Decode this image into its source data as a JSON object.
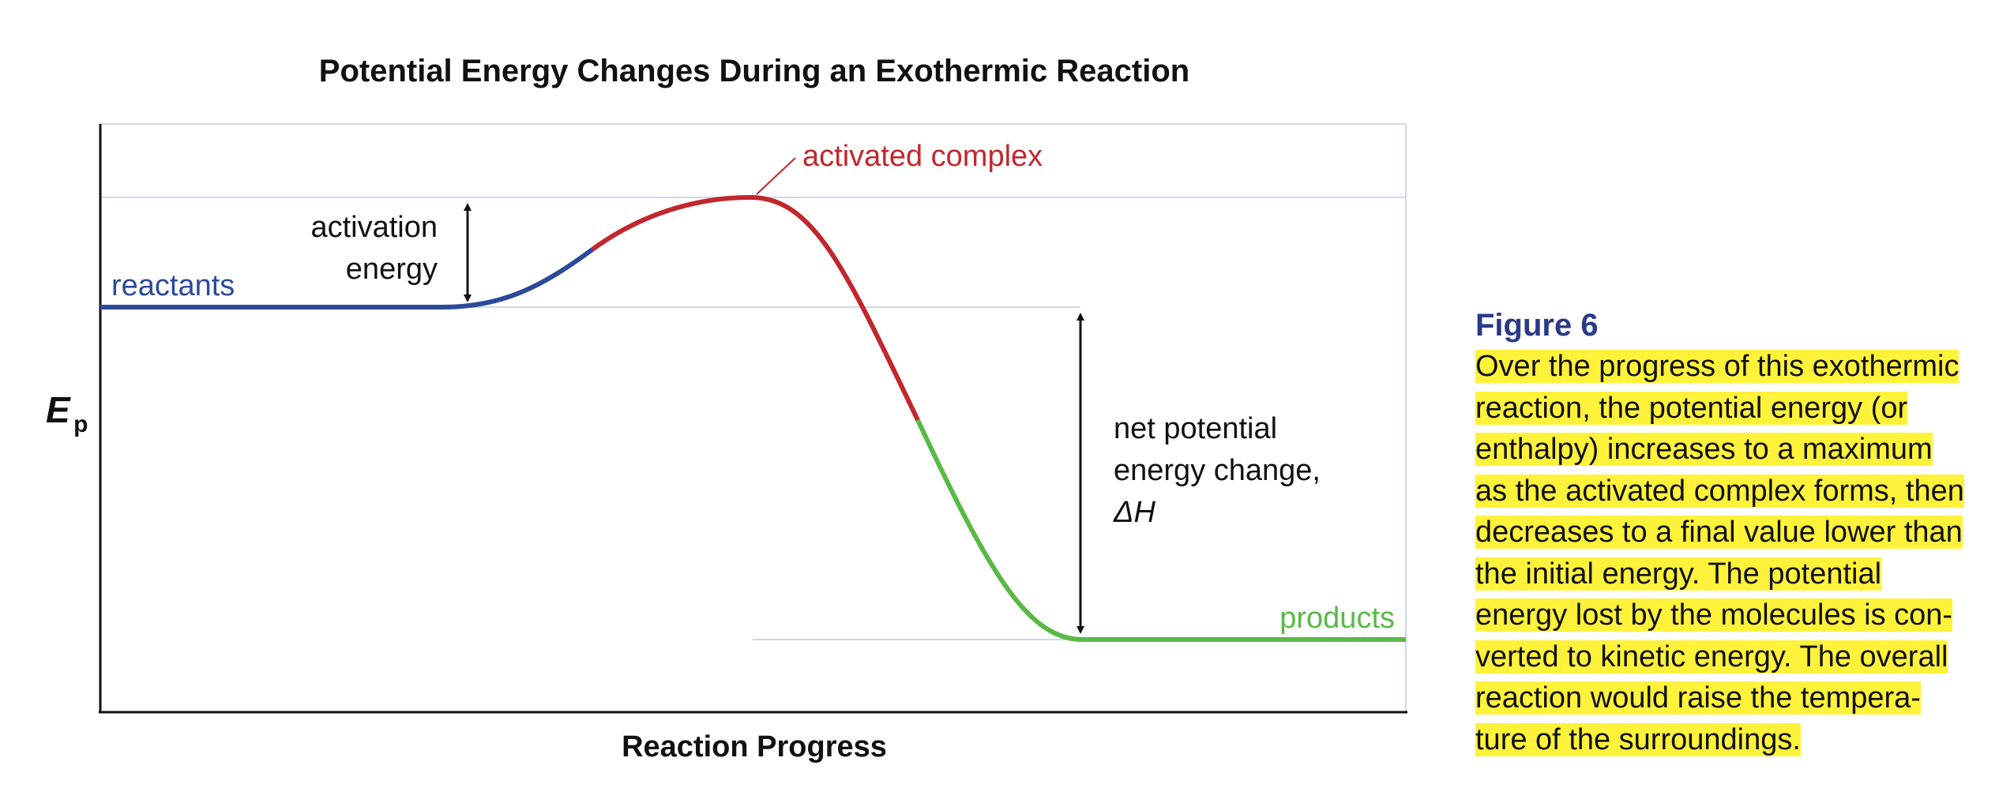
{
  "figure": {
    "title": "Potential Energy Changes During an Exothermic Reaction",
    "x_axis_label": "Reaction Progress",
    "y_axis_label_main": "E",
    "y_axis_label_sub": "p",
    "labels": {
      "reactants": "reactants",
      "products": "products",
      "activated_complex": "activated complex",
      "activation_energy_line1": "activation",
      "activation_energy_line2": "energy",
      "net_change_line1": "net potential",
      "net_change_line2": "energy change,",
      "net_change_symbol": "ΔH"
    },
    "colors": {
      "reactant_segment": "#2b4a9a",
      "transition_segment": "#c1272d",
      "product_segment": "#5ab946",
      "gridline": "#cdd8ee",
      "axis": "#111111"
    }
  },
  "caption": {
    "title": "Figure 6",
    "lines": [
      "Over the progress of this exothermic",
      "reaction, the potential energy (or",
      "enthalpy) increases to a maximum",
      "as the activated complex forms, then",
      "decreases to a final value lower than",
      "the initial energy. The potential",
      "energy lost by the molecules is con-",
      "verted to kinetic energy. The overall",
      "reaction would raise the tempera-",
      "ture of the surroundings."
    ],
    "highlight_color": "#fff23a"
  }
}
